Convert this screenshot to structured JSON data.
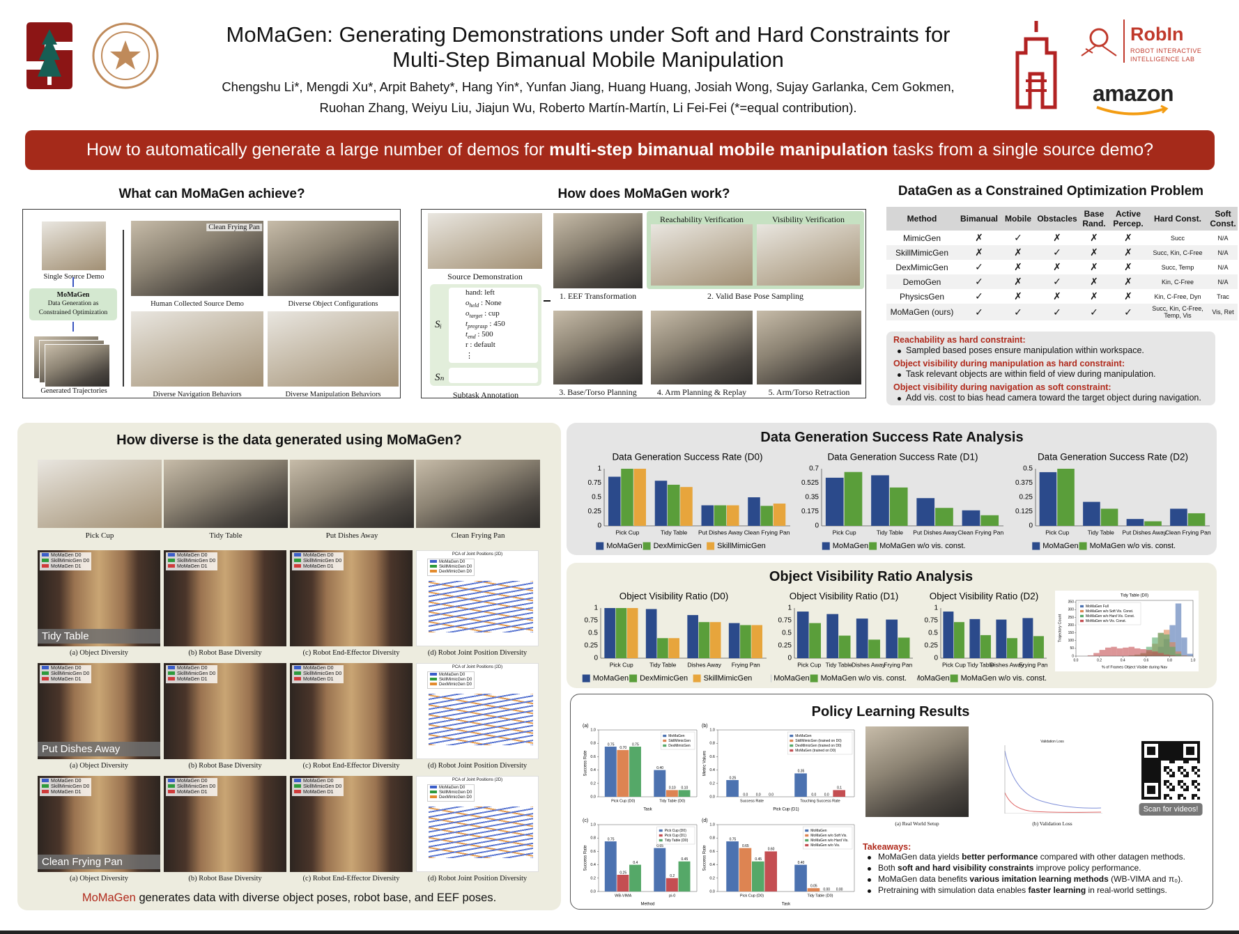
{
  "header": {
    "title": [
      "MoMaGen: Generating Demonstrations under Soft and Hard Constraints for",
      "Multi-Step Bimanual Mobile Manipulation"
    ],
    "authors": [
      "Chengshu Li*, Mengdi Xu*, Arpit Bahety*, Hang Yin*, Yunfan Jiang, Huang Huang, Josiah Wong, Sujay Garlanka, Cem Gokmen,",
      "Ruohan Zhang, Weiyu Liu, Jiajun Wu, Roberto Martín-Martín, Li Fei-Fei (*=equal contribution)."
    ],
    "logos": {
      "robin": "RobIn",
      "robin_sub": [
        "ROBOT INTERACTIVE",
        "INTELLIGENCE LAB"
      ],
      "amazon": "amazon"
    }
  },
  "banner": [
    "How to automatically generate a large number of demos for ",
    "multi-step bimanual mobile manipulation",
    " tasks from a single source demo?"
  ],
  "achieve": {
    "heading": "What can MoMaGen achieve?",
    "source": "Single Source Demo",
    "box_title": "MoMaGen",
    "box_text": [
      "Data Generation as",
      "Constrained Optimization"
    ],
    "generated": "Generated Trajectories",
    "image_label": "Clean Frying Pan",
    "captions": [
      "Human Collected Source Demo",
      "Diverse Object Configurations",
      "Diverse Navigation Behaviors",
      "Diverse Manipulation Behaviors"
    ]
  },
  "work": {
    "heading": "How does MoMaGen work?",
    "source": "Source Demonstration",
    "s_i": "Sᵢ",
    "s_n": "Sₙ",
    "annotation": [
      {
        "sym": "hand",
        "val": ": left"
      },
      {
        "sym": "o",
        "sub": "held",
        "val": " : None"
      },
      {
        "sym": "o",
        "sub": "target",
        "val": " : cup"
      },
      {
        "sym": "t",
        "sub": "pregrasp",
        "val": " : 450"
      },
      {
        "sym": "t",
        "sub": "end",
        "val": " : 500"
      },
      {
        "sym": "r",
        "val": " : default"
      },
      {
        "sym": "⋮"
      }
    ],
    "annotation_caption": "Subtask Annotation",
    "reach": "Reachability Verification",
    "vis": "Visibility Verification",
    "steps": [
      "1. EEF Transformation",
      "2. Valid Base Pose Sampling",
      "3. Base/Torso Planning",
      "4. Arm Planning & Replay",
      "5. Arm/Torso Retraction"
    ]
  },
  "table": {
    "title": "DataGen as a Constrained Optimization Problem",
    "header": [
      "Method",
      "Bimanual",
      "Mobile",
      "Obstacles",
      "Base Rand.",
      "Active Percep.",
      "Hard Const.",
      "Soft Const."
    ],
    "rows": [
      [
        "MimicGen",
        "✗",
        "✓",
        "✗",
        "✗",
        "✗",
        "Succ",
        "N/A"
      ],
      [
        "SkillMimicGen",
        "✗",
        "✗",
        "✓",
        "✗",
        "✗",
        "Succ, Kin, C-Free",
        "N/A"
      ],
      [
        "DexMimicGen",
        "✓",
        "✗",
        "✗",
        "✗",
        "✗",
        "Succ, Temp",
        "N/A"
      ],
      [
        "DemoGen",
        "✓",
        "✗",
        "✓",
        "✗",
        "✗",
        "Kin, C-Free",
        "N/A"
      ],
      [
        "PhysicsGen",
        "✓",
        "✗",
        "✗",
        "✗",
        "✗",
        "Kin, C-Free, Dyn",
        "Trac"
      ],
      [
        "MoMaGen (ours)",
        "✓",
        "✓",
        "✓",
        "✓",
        "✓",
        "Succ, Kin, C-Free, Temp, Vis",
        "Vis, Ret"
      ]
    ]
  },
  "constraints": [
    {
      "heading": "Reachability as hard constraint:",
      "text": "Sampled based poses ensure manipulation within workspace."
    },
    {
      "heading": "Object visibility during manipulation as hard constraint:",
      "text": "Task relevant objects are within field of view during manipulation."
    },
    {
      "heading": "Object visibility during navigation as soft constraint:",
      "text": "Add vis. cost to bias head camera toward the target object during navigation."
    }
  ],
  "diversity": {
    "heading": "How diverse is the data generated using MoMaGen?",
    "tasks": [
      "Pick Cup",
      "Tidy Table",
      "Put Dishes Away",
      "Clean Frying Pan"
    ],
    "rows": [
      "Tidy Table",
      "Put Dishes Away",
      "Clean Frying Pan"
    ],
    "captions": [
      "(a) Object Diversity",
      "(b) Robot Base Diversity",
      "(c) Robot End-Effector Diversity",
      "(d) Robot Joint Position Diversity"
    ],
    "image_legend": [
      "MoMaGen D0",
      "SkillMimicGen D0",
      "MoMaGen D1"
    ],
    "pca_title": "PCA of Joint Positions (2D)",
    "pca_legend": [
      "MoMaGen D0",
      "SkillMimicGen D0",
      "DexMimicGen D0"
    ],
    "footer": [
      "MoMaGen",
      " generates data with diverse object poses, robot base, and EEF poses."
    ]
  },
  "success_heading": "Data Generation Success Rate Analysis",
  "visibility_heading": "Object Visibility Ratio Analysis",
  "policy": {
    "heading": "Policy Learning Results",
    "captions": [
      "(a) Real World Setup",
      "(b) Validation Loss"
    ],
    "loss_title": "Validation Loss",
    "qr": "Scan for videos!",
    "takeaways_title": "Takeaways:",
    "takeaways": [
      [
        "MoMaGen data yields ",
        "better performance",
        " compared with other datagen methods."
      ],
      [
        "Both ",
        "soft and hard visibility constraints",
        " improve policy performance."
      ],
      [
        "MoMaGen data benefits ",
        "various imitation learning methods",
        " (WB-VIMA and π₀)."
      ],
      [
        "Pretraining with simulation data enables ",
        "faster learning",
        " in real-world settings."
      ]
    ]
  },
  "chart_data": [
    {
      "type": "bar",
      "title": "Data Generation Success Rate (D0)",
      "categories": [
        "Pick Cup",
        "Tidy Table",
        "Put Dishes Away",
        "Clean Frying Pan"
      ],
      "series": [
        {
          "name": "MoMaGen",
          "color": "#2b4a8b",
          "values": [
            0.86,
            0.79,
            0.36,
            0.5
          ]
        },
        {
          "name": "DexMimicGen",
          "color": "#5a9e3a",
          "values": [
            1,
            0.72,
            0.36,
            0.35
          ]
        },
        {
          "name": "SkillMimicGen",
          "color": "#e7a53c",
          "values": [
            1,
            0.68,
            0.36,
            0.39
          ]
        }
      ],
      "ylim": [
        0,
        1
      ],
      "yticks": [
        0,
        0.25,
        0.5,
        0.75,
        1
      ],
      "legend": "below"
    },
    {
      "type": "bar",
      "title": "Data Generation Success Rate (D1)",
      "categories": [
        "Pick Cup",
        "Tidy Table",
        "Put Dishes Away",
        "Clean Frying Pan"
      ],
      "series": [
        {
          "name": "MoMaGen",
          "color": "#2b4a8b",
          "values": [
            0.59,
            0.62,
            0.34,
            0.19
          ]
        },
        {
          "name": "MoMaGen w/o vis. const.",
          "color": "#5a9e3a",
          "values": [
            0.66,
            0.47,
            0.22,
            0.13
          ]
        }
      ],
      "ylim": [
        0,
        0.7
      ],
      "yticks": [
        0,
        0.175,
        0.35,
        0.525,
        0.7
      ],
      "legend": "below"
    },
    {
      "type": "bar",
      "title": "Data Generation Success Rate (D2)",
      "categories": [
        "Pick Cup",
        "Tidy Table",
        "Put Dishes Away",
        "Clean Frying Pan"
      ],
      "series": [
        {
          "name": "MoMaGen",
          "color": "#2b4a8b",
          "values": [
            0.47,
            0.21,
            0.06,
            0.15
          ]
        },
        {
          "name": "MoMaGen w/o vis. const.",
          "color": "#5a9e3a",
          "values": [
            0.5,
            0.15,
            0.04,
            0.11
          ]
        }
      ],
      "ylim": [
        0,
        0.5
      ],
      "yticks": [
        0,
        0.125,
        0.25,
        0.375,
        0.5
      ],
      "legend": "below"
    },
    {
      "type": "bar",
      "title": "Object Visibility Ratio (D0)",
      "categories": [
        "Pick Cup",
        "Tidy Table",
        "Dishes Away",
        "Frying Pan"
      ],
      "series": [
        {
          "name": "MoMaGen",
          "color": "#2b4a8b",
          "values": [
            1,
            0.98,
            0.86,
            0.7
          ]
        },
        {
          "name": "DexMimicGen",
          "color": "#5a9e3a",
          "values": [
            1,
            0.4,
            0.72,
            0.66
          ]
        },
        {
          "name": "SkillMimicGen",
          "color": "#e7a53c",
          "values": [
            1,
            0.4,
            0.72,
            0.66
          ]
        }
      ],
      "ylim": [
        0,
        1
      ],
      "yticks": [
        0,
        0.25,
        0.5,
        0.75,
        1
      ],
      "legend": "below"
    },
    {
      "type": "bar",
      "title": "Object Visibility Ratio (D1)",
      "categories": [
        "Pick Cup",
        "Tidy Table",
        "Dishes Away",
        "Frying Pan"
      ],
      "series": [
        {
          "name": "MoMaGen",
          "color": "#2b4a8b",
          "values": [
            0.93,
            0.88,
            0.79,
            0.77
          ]
        },
        {
          "name": "MoMaGen w/o vis. const.",
          "color": "#5a9e3a",
          "values": [
            0.7,
            0.45,
            0.37,
            0.41
          ]
        }
      ],
      "ylim": [
        0,
        1
      ],
      "yticks": [
        0,
        0.25,
        0.5,
        0.75,
        1
      ],
      "legend": "below"
    },
    {
      "type": "bar",
      "title": "Object Visibility Ratio (D2)",
      "categories": [
        "Pick Cup",
        "Tidy Table",
        "Dishes Away",
        "Frying Pan"
      ],
      "series": [
        {
          "name": "MoMaGen",
          "color": "#2b4a8b",
          "values": [
            0.93,
            0.78,
            0.77,
            0.8
          ]
        },
        {
          "name": "MoMaGen w/o vis. const.",
          "color": "#5a9e3a",
          "values": [
            0.72,
            0.46,
            0.4,
            0.44
          ]
        }
      ],
      "ylim": [
        0,
        1
      ],
      "yticks": [
        0,
        0.25,
        0.5,
        0.75,
        1
      ],
      "legend": "below"
    },
    {
      "type": "histogram",
      "title": "Tidy Table (D0)",
      "xlabel": "% of Frames Object Visible during Nav",
      "ylabel": "Trajectory Count",
      "bins": [
        0,
        0.05,
        0.1,
        0.15,
        0.2,
        0.25,
        0.3,
        0.35,
        0.4,
        0.45,
        0.5,
        0.55,
        0.6,
        0.65,
        0.7,
        0.75,
        0.8,
        0.85,
        0.9,
        0.95,
        1
      ],
      "series": [
        {
          "name": "MoMaGen Full",
          "color": "#4c72b0",
          "values": [
            0,
            0,
            0,
            0,
            0,
            0,
            0,
            0,
            0,
            0,
            0,
            5,
            10,
            25,
            60,
            110,
            200,
            340,
            120,
            15
          ]
        },
        {
          "name": "MoMaGen w/o Soft Vis. Const.",
          "color": "#dd8452",
          "values": [
            0,
            0,
            0,
            0,
            0,
            0,
            0,
            0,
            0,
            0,
            5,
            15,
            30,
            80,
            150,
            170,
            90,
            30,
            5,
            0
          ]
        },
        {
          "name": "MoMaGen w/o Hard Vis. Const.",
          "color": "#55a868",
          "values": [
            0,
            0,
            0,
            0,
            0,
            0,
            0,
            0,
            0,
            5,
            10,
            20,
            60,
            120,
            150,
            140,
            60,
            15,
            0,
            0
          ]
        },
        {
          "name": "MoMaGen w/o Vis. Const.",
          "color": "#c44e52",
          "values": [
            0,
            0,
            5,
            20,
            40,
            55,
            60,
            50,
            55,
            60,
            50,
            45,
            40,
            30,
            20,
            10,
            5,
            0,
            0,
            0
          ]
        }
      ],
      "xlim": [
        0,
        1
      ],
      "xticks": [
        {
          "value": 0,
          "label": "0.0"
        },
        0.2,
        0.4,
        0.6,
        0.8,
        {
          "value": 1,
          "label": "1.0"
        }
      ],
      "ylim": [
        0,
        360
      ],
      "yticks": [
        0,
        50,
        100,
        150,
        200,
        250,
        300,
        350
      ],
      "legend": "upper left"
    },
    {
      "type": "bar",
      "panel": "(a)",
      "xlabel": "Task",
      "ylabel": "Success Rate",
      "categories": [
        "Pick Cup (D0)",
        "Tidy Table (D0)"
      ],
      "series": [
        {
          "name": "MoMaGen",
          "color": "#4c72b0",
          "values": [
            0.75,
            0.4
          ],
          "value_labels": [
            "0.75",
            "0.40"
          ]
        },
        {
          "name": "SkillMimicGen",
          "color": "#dd8452",
          "values": [
            0.7,
            0.1
          ],
          "value_labels": [
            "0.70",
            "0.10"
          ]
        },
        {
          "name": "DexMimicGen",
          "color": "#55a868",
          "values": [
            0.75,
            0.1
          ],
          "value_labels": [
            "0.75",
            "0.10"
          ]
        }
      ],
      "ylim": [
        0,
        1
      ],
      "yticks": [
        {
          "value": 0,
          "label": "0.0"
        },
        0.2,
        0.4,
        0.6,
        0.8,
        {
          "value": 1,
          "label": "1.0"
        }
      ],
      "legend": "upper right"
    },
    {
      "type": "bar",
      "panel": "(b)",
      "xlabel": "Pick Cup (D1)",
      "ylabel": "Metric Values",
      "categories": [
        "Success Rate",
        "Touching Success Rate"
      ],
      "series": [
        {
          "name": "MoMaGen",
          "color": "#4c72b0",
          "values": [
            0.25,
            0.35
          ],
          "value_labels": [
            "0.25",
            "0.35"
          ]
        },
        {
          "name": "SkillMimicGen (trained on D0)",
          "color": "#dd8452",
          "values": [
            0,
            0
          ],
          "value_labels": [
            "0.0",
            "0.0"
          ]
        },
        {
          "name": "DexMimicGen (trained on D0)",
          "color": "#55a868",
          "values": [
            0,
            0
          ],
          "value_labels": [
            "0.0",
            "0.0"
          ]
        },
        {
          "name": "MoMaGen (trained on D0)",
          "color": "#c44e52",
          "values": [
            0,
            0.1
          ],
          "value_labels": [
            "0.0",
            "0.1"
          ]
        }
      ],
      "ylim": [
        0,
        1
      ],
      "yticks": [
        {
          "value": 0,
          "label": "0.0"
        },
        0.2,
        0.4,
        0.6,
        0.8,
        {
          "value": 1,
          "label": "1.0"
        }
      ],
      "legend": "upper right"
    },
    {
      "type": "bar",
      "panel": "(c)",
      "xlabel": "Method",
      "ylabel": "Success Rate",
      "categories": [
        "WB-VIMA",
        "pi-0"
      ],
      "series": [
        {
          "name": "Pick Cup (D0)",
          "color": "#4c72b0",
          "values": [
            0.75,
            0.65
          ],
          "value_labels": [
            "0.75",
            "0.65"
          ]
        },
        {
          "name": "Pick Cup (D1)",
          "color": "#c44e52",
          "values": [
            0.25,
            0.2
          ],
          "value_labels": [
            "0.25",
            "0.2"
          ]
        },
        {
          "name": "Tidy Table (D0)",
          "color": "#55a868",
          "values": [
            0.4,
            0.45
          ],
          "value_labels": [
            "0.4",
            "0.45"
          ]
        }
      ],
      "ylim": [
        0,
        1
      ],
      "yticks": [
        {
          "value": 0,
          "label": "0.0"
        },
        0.2,
        0.4,
        0.6,
        0.8,
        {
          "value": 1,
          "label": "1.0"
        }
      ],
      "legend": "upper right"
    },
    {
      "type": "bar",
      "panel": "(d)",
      "xlabel": "Task",
      "ylabel": "Success Rate",
      "categories": [
        "Pick Cup (D0)",
        "Tidy Table (D0)"
      ],
      "series": [
        {
          "name": "MoMaGen",
          "color": "#4c72b0",
          "values": [
            0.75,
            0.4
          ],
          "value_labels": [
            "0.75",
            "0.40"
          ]
        },
        {
          "name": "MoMaGen w/o Soft Vis.",
          "color": "#dd8452",
          "values": [
            0.65,
            0.05
          ],
          "value_labels": [
            "0.65",
            "0.05"
          ]
        },
        {
          "name": "MoMaGen w/o Hard Vis.",
          "color": "#55a868",
          "values": [
            0.45,
            0
          ],
          "value_labels": [
            "0.45",
            "0.00"
          ]
        },
        {
          "name": "MoMaGen w/o Vis.",
          "color": "#c44e52",
          "values": [
            0.6,
            0
          ],
          "value_labels": [
            "0.60",
            "0.00"
          ]
        }
      ],
      "ylim": [
        0,
        1
      ],
      "yticks": [
        {
          "value": 0,
          "label": "0.0"
        },
        0.2,
        0.4,
        0.6,
        0.8,
        {
          "value": 1,
          "label": "1.0"
        }
      ],
      "legend": "upper right"
    }
  ]
}
